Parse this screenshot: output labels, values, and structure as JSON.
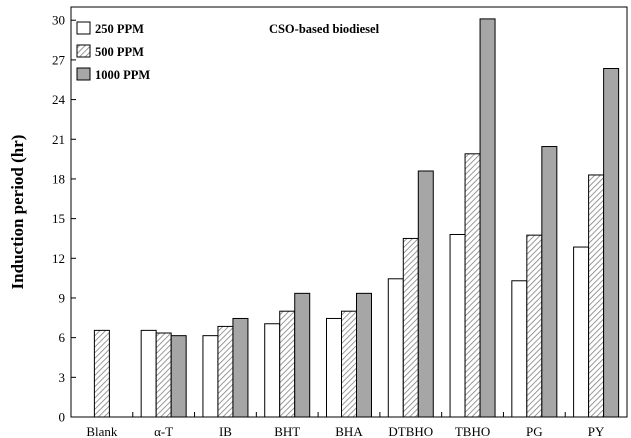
{
  "chart_data": {
    "type": "bar",
    "title": "CSO-based biodiesel",
    "xlabel": "",
    "ylabel": "Induction period (hr)",
    "ylim": [
      0,
      31
    ],
    "yticks": [
      0,
      3,
      6,
      9,
      12,
      15,
      18,
      21,
      24,
      27,
      30
    ],
    "categories": [
      "Blank",
      "α-T",
      "IB",
      "BHT",
      "BHA",
      "DTBHO",
      "TBHO",
      "PG",
      "PY"
    ],
    "series": [
      {
        "name": "250 PPM",
        "style": "white",
        "values": [
          null,
          6.55,
          6.15,
          7.05,
          7.45,
          10.45,
          13.8,
          10.3,
          12.85
        ]
      },
      {
        "name": "500 PPM",
        "style": "hatched",
        "values": [
          6.55,
          6.35,
          6.85,
          8.0,
          8.0,
          13.5,
          19.9,
          13.75,
          18.3
        ]
      },
      {
        "name": "1000 PPM",
        "style": "gray",
        "values": [
          null,
          6.15,
          7.45,
          9.35,
          9.35,
          18.6,
          30.1,
          20.45,
          26.35
        ]
      }
    ],
    "legend_position": "top-left",
    "grid": false
  },
  "colors": {
    "series_250": "#ffffff",
    "series_500_base": "#ffffff",
    "series_500_hatch": "#7f7f7f",
    "series_1000": "#a6a6a6",
    "stroke": "#000000"
  }
}
